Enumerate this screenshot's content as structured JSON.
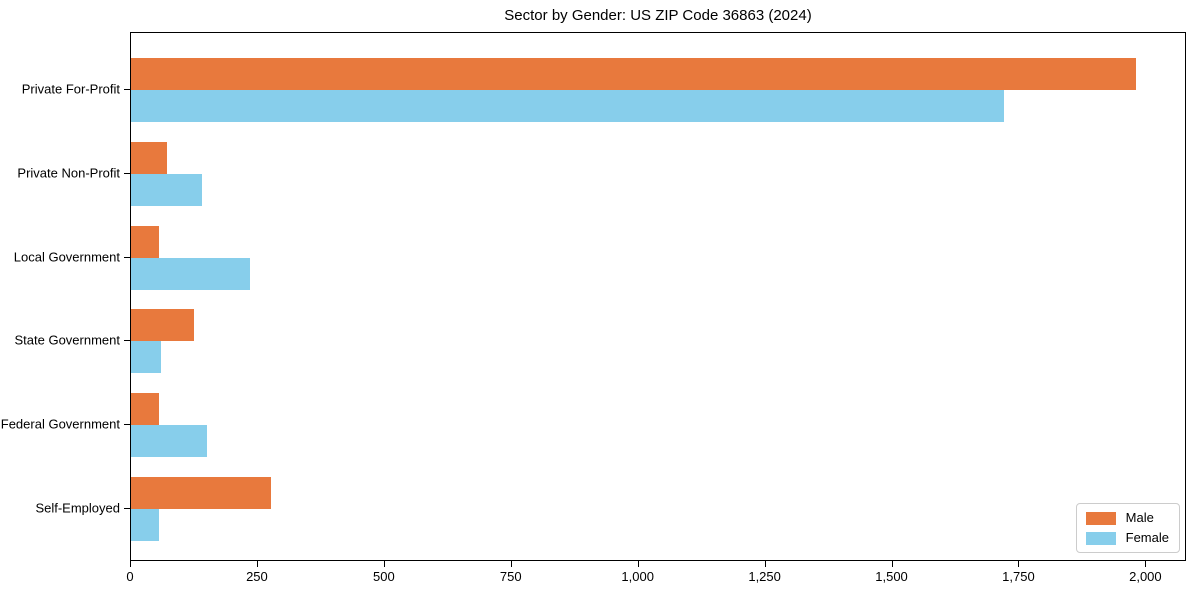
{
  "chart_data": {
    "type": "bar",
    "orientation": "horizontal",
    "title": "Sector by Gender: US ZIP Code 36863 (2024)",
    "xlabel": "",
    "ylabel": "",
    "categories": [
      "Private For-Profit",
      "Private Non-Profit",
      "Local Government",
      "State Government",
      "Federal Government",
      "Self-Employed"
    ],
    "series": [
      {
        "name": "Male",
        "color": "#e8793d",
        "values": [
          1980,
          70,
          55,
          125,
          55,
          275
        ]
      },
      {
        "name": "Female",
        "color": "#87ceeb",
        "values": [
          1720,
          140,
          235,
          60,
          150,
          55
        ]
      }
    ],
    "xlim": [
      0,
      2080
    ],
    "xticks": [
      {
        "value": 0,
        "label": "0"
      },
      {
        "value": 250,
        "label": "250"
      },
      {
        "value": 500,
        "label": "500"
      },
      {
        "value": 750,
        "label": "750"
      },
      {
        "value": 1000,
        "label": "1,000"
      },
      {
        "value": 1250,
        "label": "1,250"
      },
      {
        "value": 1500,
        "label": "1,500"
      },
      {
        "value": 1750,
        "label": "1,750"
      },
      {
        "value": 2000,
        "label": "2,000"
      }
    ],
    "grid": false,
    "legend": {
      "position": "lower right",
      "labels": [
        "Male",
        "Female"
      ]
    }
  }
}
